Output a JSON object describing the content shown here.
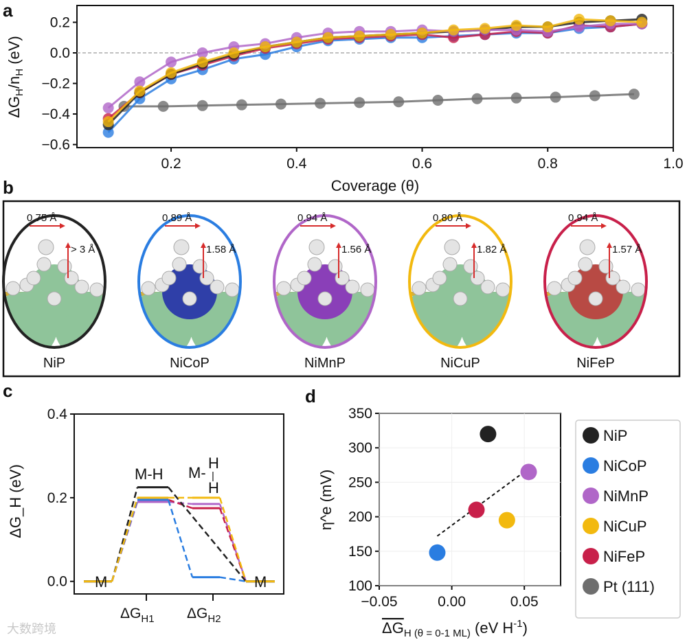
{
  "colors": {
    "NiP": "#222222",
    "NiCoP": "#2a7de1",
    "NiMnP": "#b066c8",
    "NiCuP": "#f2b90f",
    "NiFeP": "#c8204a",
    "Pt": "#6e6e6e"
  },
  "watermark": "大数跨境",
  "chart_data": [
    {
      "panel": "a",
      "type": "line",
      "xlabel": "Coverage (θ)",
      "ylabel": "ΔG_H/n_H (eV)",
      "ylabel_main": "ΔG",
      "ylabel_sub": "H",
      "ylabel_rest": "/n",
      "ylabel_sub2": "H",
      "ylabel_unit": " (eV)",
      "xlim": [
        0.05,
        1.0
      ],
      "ylim": [
        -0.62,
        0.31
      ],
      "xticks": [
        0.2,
        0.4,
        0.6,
        0.8,
        1.0
      ],
      "xtick_labels": [
        "0.2",
        "0.4",
        "0.6",
        "0.8",
        "1.0"
      ],
      "yticks": [
        0.2,
        0.0,
        -0.2,
        -0.4,
        -0.6
      ],
      "ytick_labels": [
        "0.2",
        "0.0",
        "−0.2",
        "−0.4",
        "−0.6"
      ],
      "reference_line": 0.0,
      "series": [
        {
          "name": "Pt (111)",
          "key": "Pt",
          "x": [
            0.125,
            0.1875,
            0.25,
            0.3125,
            0.375,
            0.4375,
            0.5,
            0.5625,
            0.625,
            0.6875,
            0.75,
            0.8125,
            0.875,
            0.9375
          ],
          "y": [
            -0.35,
            -0.35,
            -0.345,
            -0.34,
            -0.335,
            -0.33,
            -0.325,
            -0.32,
            -0.31,
            -0.3,
            -0.295,
            -0.29,
            -0.28,
            -0.27
          ]
        },
        {
          "name": "NiCoP",
          "key": "NiCoP",
          "x": [
            0.1,
            0.15,
            0.2,
            0.25,
            0.3,
            0.35,
            0.4,
            0.45,
            0.5,
            0.55,
            0.6,
            0.65,
            0.7,
            0.75,
            0.8,
            0.85,
            0.9,
            0.95
          ],
          "y": [
            -0.52,
            -0.3,
            -0.17,
            -0.11,
            -0.04,
            -0.01,
            0.04,
            0.08,
            0.09,
            0.1,
            0.1,
            0.11,
            0.12,
            0.13,
            0.13,
            0.16,
            0.17,
            0.19
          ]
        },
        {
          "name": "NiFeP",
          "key": "NiFeP",
          "x": [
            0.1,
            0.15,
            0.2,
            0.25,
            0.3,
            0.35,
            0.4,
            0.45,
            0.5,
            0.55,
            0.6,
            0.65,
            0.7,
            0.75,
            0.8,
            0.85,
            0.9,
            0.95
          ],
          "y": [
            -0.43,
            -0.26,
            -0.14,
            -0.08,
            -0.02,
            0.03,
            0.06,
            0.09,
            0.1,
            0.11,
            0.12,
            0.1,
            0.12,
            0.14,
            0.13,
            0.18,
            0.17,
            0.19
          ]
        },
        {
          "name": "NiP",
          "key": "NiP",
          "x": [
            0.1,
            0.15,
            0.2,
            0.25,
            0.3,
            0.35,
            0.4,
            0.45,
            0.5,
            0.55,
            0.6,
            0.65,
            0.7,
            0.75,
            0.8,
            0.85,
            0.9,
            0.95
          ],
          "y": [
            -0.47,
            -0.26,
            -0.14,
            -0.07,
            -0.01,
            0.04,
            0.07,
            0.1,
            0.11,
            0.12,
            0.13,
            0.14,
            0.15,
            0.17,
            0.17,
            0.2,
            0.21,
            0.22
          ]
        },
        {
          "name": "NiMnP",
          "key": "NiMnP",
          "x": [
            0.1,
            0.15,
            0.2,
            0.25,
            0.3,
            0.35,
            0.4,
            0.45,
            0.5,
            0.55,
            0.6,
            0.65,
            0.7,
            0.75,
            0.8,
            0.85,
            0.9,
            0.95
          ],
          "y": [
            -0.36,
            -0.19,
            -0.06,
            0.0,
            0.04,
            0.06,
            0.1,
            0.13,
            0.14,
            0.14,
            0.15,
            0.14,
            0.15,
            0.15,
            0.14,
            0.17,
            0.19,
            0.19
          ]
        },
        {
          "name": "NiCuP",
          "key": "NiCuP",
          "x": [
            0.1,
            0.15,
            0.2,
            0.25,
            0.3,
            0.35,
            0.4,
            0.45,
            0.5,
            0.55,
            0.6,
            0.65,
            0.7,
            0.75,
            0.8,
            0.85,
            0.9,
            0.95
          ],
          "y": [
            -0.45,
            -0.25,
            -0.13,
            -0.06,
            0.0,
            0.04,
            0.07,
            0.1,
            0.11,
            0.12,
            0.13,
            0.15,
            0.16,
            0.18,
            0.17,
            0.22,
            0.21,
            0.2
          ]
        }
      ]
    },
    {
      "panel": "b",
      "type": "table",
      "structures": [
        {
          "name": "NiP",
          "key": "NiP",
          "lateral": "0.75 Å",
          "vertical": "> 3 Å",
          "center": "#8fc49a"
        },
        {
          "name": "NiCoP",
          "key": "NiCoP",
          "lateral": "0.89 Å",
          "vertical": "1.58 Å",
          "center": "#2f3fa8"
        },
        {
          "name": "NiMnP",
          "key": "NiMnP",
          "lateral": "0.94 Å",
          "vertical": "1.56 Å",
          "center": "#8a3fb8"
        },
        {
          "name": "NiCuP",
          "key": "NiCuP",
          "lateral": "0.80 Å",
          "vertical": "1.82 Å",
          "center": "#8fc49a"
        },
        {
          "name": "NiFeP",
          "key": "NiFeP",
          "lateral": "0.94 Å",
          "vertical": "1.57 Å",
          "center": "#b84a44"
        }
      ]
    },
    {
      "panel": "c",
      "type": "line",
      "ylabel": "ΔG_H (eV)",
      "ylabel_main": "ΔG",
      "ylabel_sub": "H",
      "ylabel_unit": " (eV)",
      "ylim": [
        -0.03,
        0.4
      ],
      "yticks": [
        0.0,
        0.2,
        0.4
      ],
      "ytick_labels": [
        "0.0",
        "0.2",
        "0.4"
      ],
      "xtick_labels": [
        {
          "main": "ΔG",
          "sub": "H1"
        },
        {
          "main": "ΔG",
          "sub": "H2"
        }
      ],
      "state_labels": {
        "start": "M",
        "mh": "M-H",
        "mh2_top": "H",
        "mh2_left": "M-",
        "mh2_bar": "|",
        "mh2_bottom": "H",
        "end": "M"
      },
      "series": [
        {
          "key": "NiMnP",
          "dG_H1": 0.19,
          "dG_H2": 0.185
        },
        {
          "key": "NiFeP",
          "dG_H1": 0.195,
          "dG_H2": 0.175
        },
        {
          "key": "NiCoP",
          "dG_H1": 0.195,
          "dG_H2": 0.01
        },
        {
          "key": "NiP",
          "dG_H1": 0.225,
          "dG_H2": null
        },
        {
          "key": "NiCuP",
          "dG_H1": 0.2,
          "dG_H2": 0.2
        }
      ]
    },
    {
      "panel": "d",
      "type": "scatter",
      "ylabel": "η^e (mV)",
      "ylabel_main": "η",
      "ylabel_sup": "e",
      "ylabel_unit": " (mV)",
      "xlabel_main": "ΔG",
      "xlabel_sub": "H (θ = 0-1 ML)",
      "xlabel_unit": " (eV  H",
      "xlabel_sup": "-1",
      "xlabel_close": ")",
      "xlim": [
        -0.05,
        0.075
      ],
      "ylim": [
        100,
        350
      ],
      "xticks": [
        -0.05,
        0.0,
        0.05
      ],
      "xtick_labels": [
        "−0.05",
        "0.00",
        "0.05"
      ],
      "yticks": [
        100,
        150,
        200,
        250,
        300,
        350
      ],
      "ytick_labels": [
        "100",
        "150",
        "200",
        "250",
        "300",
        "350"
      ],
      "points": [
        {
          "name": "NiP",
          "key": "NiP",
          "x": 0.025,
          "y": 320
        },
        {
          "name": "NiCoP",
          "key": "NiCoP",
          "x": -0.01,
          "y": 148
        },
        {
          "name": "NiMnP",
          "key": "NiMnP",
          "x": 0.053,
          "y": 265
        },
        {
          "name": "NiCuP",
          "key": "NiCuP",
          "x": 0.038,
          "y": 195
        },
        {
          "name": "NiFeP",
          "key": "NiFeP",
          "x": 0.017,
          "y": 210
        }
      ],
      "fit_line": {
        "x": [
          -0.01,
          0.048
        ],
        "y": [
          172,
          262
        ]
      },
      "legend": [
        {
          "label": "NiP",
          "key": "NiP"
        },
        {
          "label": "NiCoP",
          "key": "NiCoP"
        },
        {
          "label": "NiMnP",
          "key": "NiMnP"
        },
        {
          "label": "NiCuP",
          "key": "NiCuP"
        },
        {
          "label": "NiFeP",
          "key": "NiFeP"
        },
        {
          "label": "Pt (111)",
          "key": "Pt"
        }
      ],
      "legend_position": "right-outside"
    }
  ],
  "panel_labels": {
    "a": "a",
    "b": "b",
    "c": "c",
    "d": "d"
  }
}
